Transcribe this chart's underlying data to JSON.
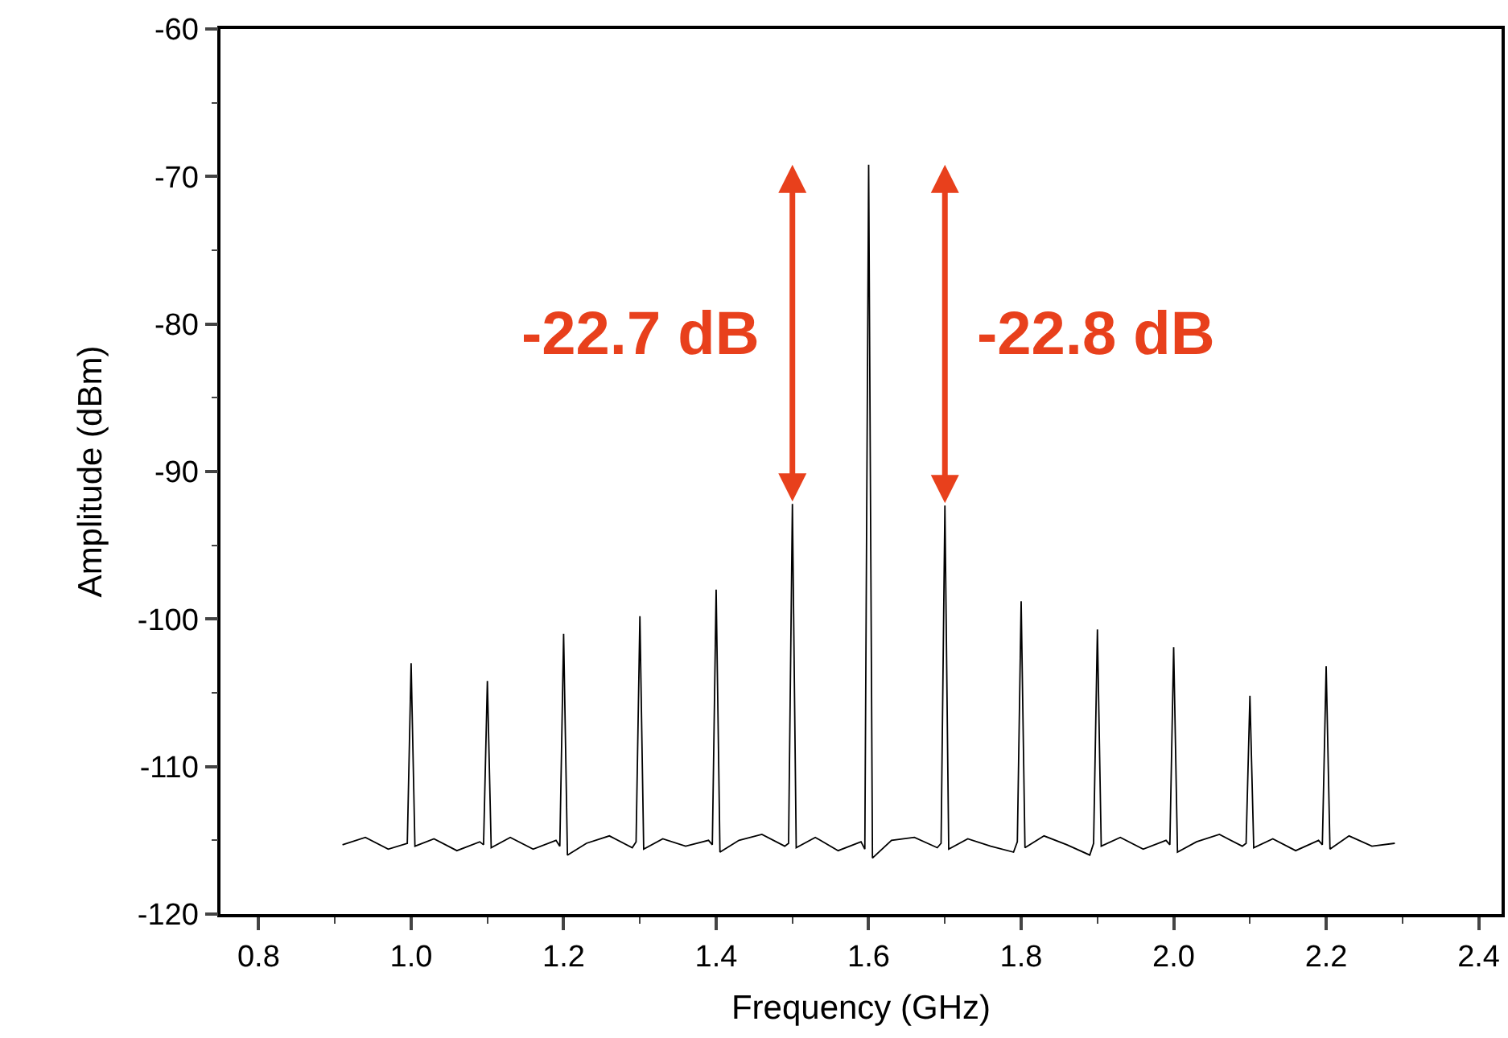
{
  "chart_data": {
    "type": "line",
    "xlabel": "Frequency (GHz)",
    "ylabel": "Amplitude (dBm)",
    "xlim": [
      0.75,
      2.43
    ],
    "ylim": [
      -120,
      -60
    ],
    "xticks": [
      0.8,
      {
        "value": 1,
        "label": "1.0"
      },
      1.2,
      1.4,
      1.6,
      1.8,
      {
        "value": 2,
        "label": "2.0"
      },
      2.2,
      2.4
    ],
    "yticks": [
      -120,
      -110,
      -100,
      -90,
      -80,
      -70,
      -60
    ],
    "grid": false,
    "marker": "none",
    "line_style": "solid",
    "annotations": [
      {
        "text": "-22.7 dB",
        "x": 1.5,
        "y": -92.2
      },
      {
        "text": "-22.8 dB",
        "x": 1.7,
        "y": -92.3
      }
    ],
    "series": [
      {
        "color": "#000000",
        "x": [
          0.91,
          0.94,
          0.97,
          0.995,
          1.0,
          1.005,
          1.03,
          1.06,
          1.09,
          1.095,
          1.1,
          1.105,
          1.13,
          1.16,
          1.19,
          1.195,
          1.2,
          1.205,
          1.23,
          1.26,
          1.29,
          1.295,
          1.3,
          1.305,
          1.33,
          1.36,
          1.39,
          1.395,
          1.4,
          1.405,
          1.43,
          1.46,
          1.49,
          1.495,
          1.5,
          1.505,
          1.53,
          1.56,
          1.59,
          1.595,
          1.6,
          1.605,
          1.63,
          1.66,
          1.69,
          1.695,
          1.7,
          1.705,
          1.73,
          1.76,
          1.79,
          1.795,
          1.8,
          1.805,
          1.83,
          1.86,
          1.89,
          1.895,
          1.9,
          1.905,
          1.93,
          1.96,
          1.99,
          1.995,
          2.0,
          2.005,
          2.03,
          2.06,
          2.09,
          2.095,
          2.1,
          2.105,
          2.13,
          2.16,
          2.19,
          2.195,
          2.2,
          2.205,
          2.23,
          2.26,
          2.29
        ],
        "values": [
          -115.3,
          -114.8,
          -115.6,
          -115.2,
          -103.0,
          -115.4,
          -114.9,
          -115.7,
          -115.1,
          -115.3,
          -104.2,
          -115.5,
          -114.8,
          -115.6,
          -115.0,
          -115.4,
          -101.0,
          -116.0,
          -115.2,
          -114.7,
          -115.5,
          -115.1,
          -99.8,
          -115.6,
          -114.9,
          -115.4,
          -115.0,
          -115.3,
          -98.0,
          -115.8,
          -115.0,
          -114.6,
          -115.4,
          -115.2,
          -92.2,
          -115.5,
          -114.8,
          -115.7,
          -115.1,
          -115.6,
          -69.2,
          -116.2,
          -115.0,
          -114.8,
          -115.5,
          -115.2,
          -92.3,
          -115.6,
          -114.9,
          -115.4,
          -115.8,
          -115.1,
          -98.8,
          -115.5,
          -114.7,
          -115.3,
          -116.0,
          -115.2,
          -100.7,
          -115.4,
          -114.8,
          -115.6,
          -115.0,
          -115.3,
          -101.9,
          -115.8,
          -115.1,
          -114.6,
          -115.4,
          -115.2,
          -105.2,
          -115.5,
          -114.9,
          -115.7,
          -115.0,
          -115.3,
          -103.2,
          -115.6,
          -114.7,
          -115.4,
          -115.2
        ]
      }
    ]
  }
}
